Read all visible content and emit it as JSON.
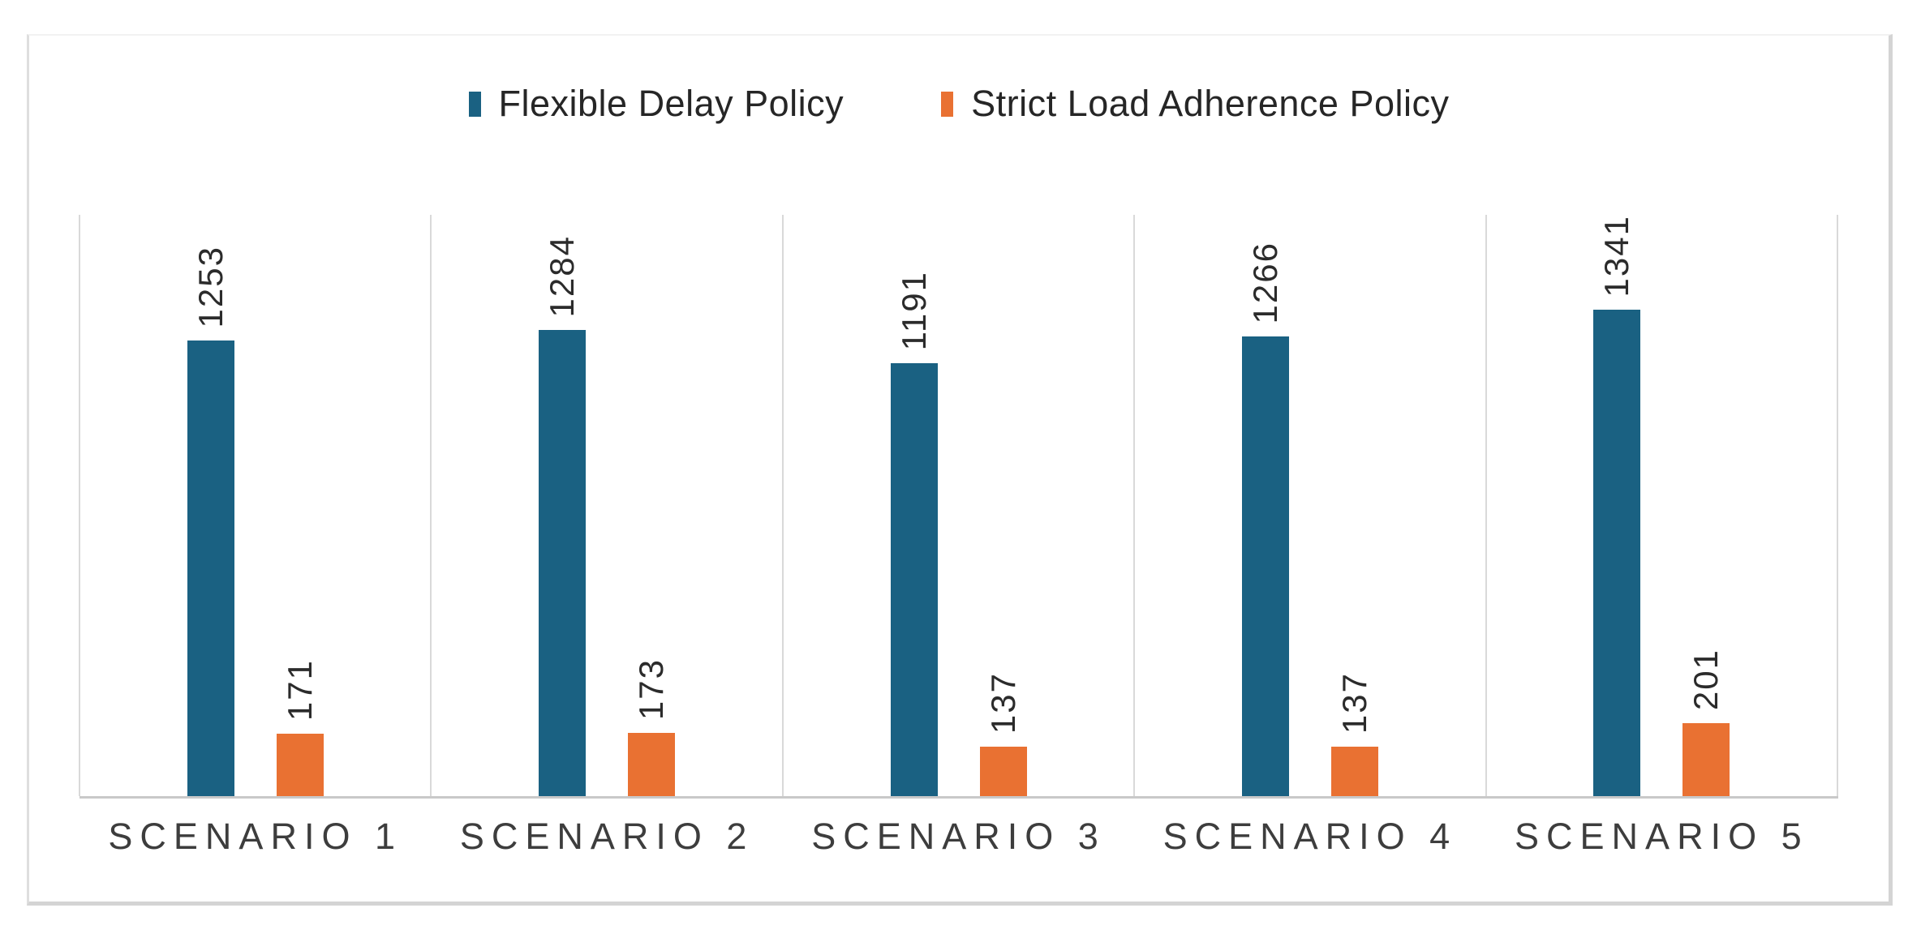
{
  "chart_data": {
    "type": "bar",
    "title": "",
    "categories": [
      "SCENARIO 1",
      "SCENARIO 2",
      "SCENARIO 3",
      "SCENARIO 4",
      "SCENARIO 5"
    ],
    "series": [
      {
        "name": "Flexible Delay Policy",
        "color": "#1A6182",
        "values": [
          1253,
          1284,
          1191,
          1266,
          1341
        ]
      },
      {
        "name": "Strict Load Adherence Policy",
        "color": "#E97132",
        "values": [
          171,
          173,
          137,
          137,
          201
        ]
      }
    ],
    "xlabel": "",
    "ylabel": "",
    "ylim": [
      0,
      1600
    ],
    "y_axis_visible": false,
    "grid": "vertical category separator lines only",
    "legend_position": "top-center",
    "data_labels": "values rotated 90° above each bar"
  },
  "style": {
    "gridline_color": "#d9d9d9",
    "axis_line_color": "#c9c9c9",
    "frame_border_color": "#d4d4d4",
    "label_text_color": "#2b2b2b",
    "category_text_color": "#3d3d3d",
    "background_color": "#ffffff"
  }
}
